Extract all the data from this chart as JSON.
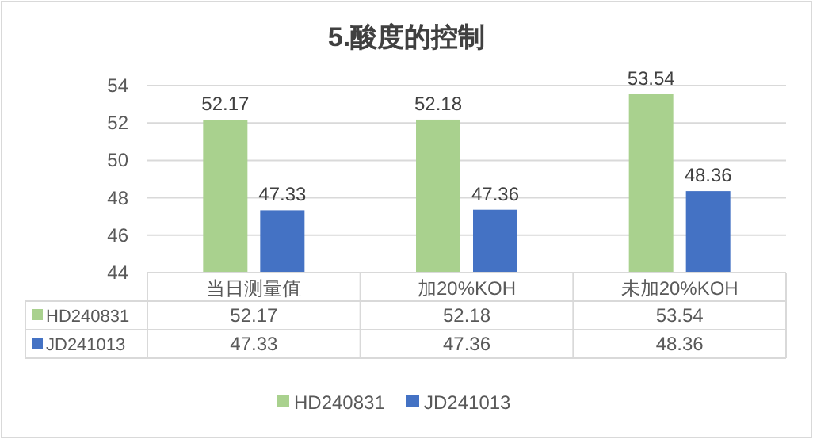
{
  "chart_data": {
    "type": "bar",
    "title": "5.酸度的控制",
    "categories": [
      "当日测量值",
      "加20%KOH",
      "未加20%KOH"
    ],
    "series": [
      {
        "name": "HD240831",
        "color": "#a9d18e",
        "values": [
          52.17,
          52.18,
          53.54
        ]
      },
      {
        "name": "JD241013",
        "color": "#4472c4",
        "values": [
          47.33,
          47.36,
          48.36
        ]
      }
    ],
    "annotations": [
      "52.17",
      "52.18",
      "53.54",
      "47.33",
      "47.36",
      "48.36"
    ],
    "ylim": [
      44,
      54
    ],
    "yticks": [
      44,
      46,
      48,
      50,
      52,
      54
    ],
    "grid": "y",
    "data_labels": true,
    "legend": "bottom"
  }
}
